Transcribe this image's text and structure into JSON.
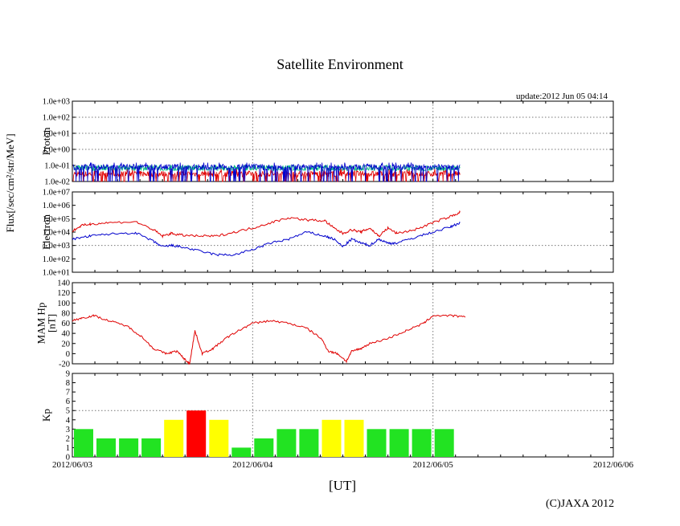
{
  "page": {
    "title": "Satellite Environment",
    "update": "update:2012 Jun 05 04:14",
    "copyright": "(C)JAXA 2012",
    "x_axis_label": "[UT]",
    "flux_label": "Flux[/sec/cm²/str/MeV]"
  },
  "colors": {
    "red": "#e00000",
    "blue": "#0000cc",
    "green": "#00c080",
    "kp_green": "#22e322",
    "kp_yellow": "#ffff00",
    "kp_red": "#ff0000"
  },
  "chart_data": [
    {
      "panel": "proton",
      "type": "line",
      "ylabel": "Proton",
      "y_scale": "log",
      "ylim": [
        0.01,
        1000
      ],
      "y_ticks": [
        "1.0e-02",
        "1.0e-01",
        "1.0e+00",
        "1.0e+01",
        "1.0e+02",
        "1.0e+03"
      ],
      "x_ticks": [
        "2012/06/03",
        "2012/06/04",
        "2012/06/05",
        "2012/06/06"
      ],
      "x_end": "2012/06/05 04:14",
      "grid": "dotted at each day and at the 1.0e+00, 1.0e+01 and 1.0e+02 decades",
      "series": [
        {
          "color": "blue",
          "typical": 0.08,
          "noise_range": [
            0.01,
            0.15
          ]
        },
        {
          "color": "green",
          "typical": 0.07,
          "noise_range": [
            0.05,
            0.1
          ]
        },
        {
          "color": "red",
          "typical": 0.03,
          "noise_range": [
            0.01,
            0.06
          ]
        }
      ]
    },
    {
      "panel": "electron",
      "type": "line",
      "ylabel": "Electron",
      "y_scale": "log",
      "ylim": [
        10,
        10000000
      ],
      "y_ticks": [
        "1.0e+01",
        "1.0e+02",
        "1.0e+03",
        "1.0e+04",
        "1.0e+05",
        "1.0e+06",
        "1.0e+07"
      ],
      "series": [
        {
          "color": "red",
          "x": [
            0,
            0.05,
            0.1,
            0.2,
            0.35,
            0.45,
            0.5,
            0.55,
            0.6,
            0.7,
            0.8,
            0.9,
            1.0,
            1.1,
            1.2,
            1.3,
            1.4,
            1.45,
            1.5,
            1.55,
            1.6,
            1.65,
            1.7,
            1.75,
            1.8,
            1.9,
            2.0,
            2.1,
            2.15
          ],
          "y": [
            12000,
            30000,
            40000,
            50000,
            60000,
            15000,
            5000,
            8000,
            6000,
            5000,
            5000,
            10000,
            20000,
            50000,
            120000,
            80000,
            70000,
            20000,
            8000,
            15000,
            10000,
            20000,
            5000,
            20000,
            8000,
            15000,
            50000,
            150000,
            300000
          ]
        },
        {
          "color": "blue",
          "x": [
            0,
            0.1,
            0.2,
            0.35,
            0.45,
            0.5,
            0.55,
            0.6,
            0.7,
            0.8,
            0.9,
            1.0,
            1.1,
            1.2,
            1.3,
            1.4,
            1.45,
            1.5,
            1.55,
            1.6,
            1.65,
            1.7,
            1.75,
            1.8,
            1.9,
            2.0,
            2.1,
            2.15
          ],
          "y": [
            3000,
            5000,
            7000,
            9000,
            2000,
            800,
            1000,
            800,
            400,
            200,
            200,
            500,
            1500,
            3000,
            10000,
            5000,
            3000,
            800,
            3000,
            1500,
            1000,
            3000,
            1500,
            1500,
            4000,
            10000,
            25000,
            50000
          ]
        }
      ]
    },
    {
      "panel": "mam_hp",
      "type": "line",
      "ylabel": "MAM Hp\n[nT]",
      "y_scale": "linear",
      "ylim": [
        -20,
        140
      ],
      "y_ticks": [
        "-20",
        "0",
        "20",
        "40",
        "60",
        "80",
        "100",
        "120",
        "140"
      ],
      "series": [
        {
          "color": "red",
          "x": [
            0,
            0.05,
            0.12,
            0.2,
            0.3,
            0.38,
            0.45,
            0.52,
            0.58,
            0.62,
            0.65,
            0.68,
            0.72,
            0.78,
            0.85,
            0.92,
            1.0,
            1.1,
            1.2,
            1.3,
            1.38,
            1.42,
            1.47,
            1.52,
            1.55,
            1.6,
            1.65,
            1.75,
            1.85,
            1.95,
            2.0,
            2.1,
            2.18
          ],
          "y": [
            65,
            70,
            75,
            65,
            55,
            35,
            10,
            0,
            5,
            -10,
            -20,
            45,
            0,
            10,
            30,
            45,
            60,
            65,
            60,
            50,
            30,
            5,
            0,
            -15,
            5,
            10,
            20,
            30,
            45,
            60,
            75,
            75,
            72
          ]
        }
      ]
    },
    {
      "panel": "kp",
      "type": "bar",
      "ylabel": "Kp",
      "ylim": [
        0,
        9
      ],
      "y_ticks": [
        "0",
        "1",
        "2",
        "3",
        "4",
        "5",
        "6",
        "7",
        "8",
        "9"
      ],
      "bar_interval_hours": 3,
      "values": [
        3,
        2,
        2,
        2,
        4,
        5,
        4,
        1,
        2,
        3,
        3,
        4,
        4,
        3,
        3,
        3,
        3
      ],
      "color_rule": "Kp < 4 green, Kp = 4 yellow, Kp >= 5 red"
    }
  ]
}
